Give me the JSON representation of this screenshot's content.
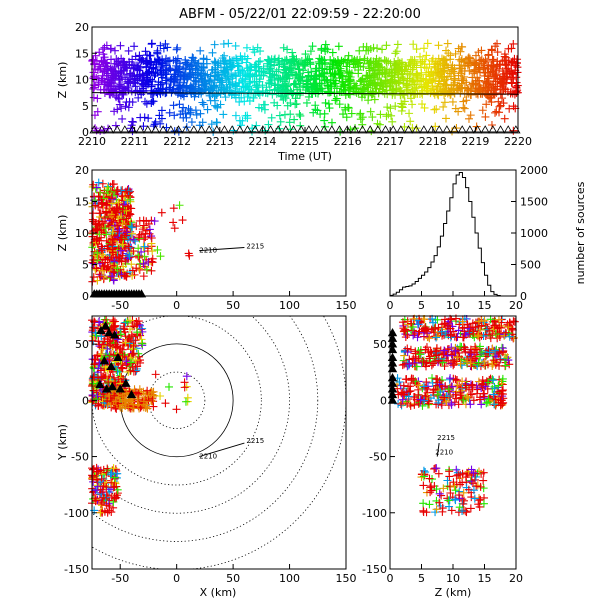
{
  "title": "ABFM - 05/22/01 22:09:59 - 22:20:00",
  "chart_data": [
    {
      "id": "time_height",
      "type": "scatter",
      "xlabel": "Time (UT)",
      "ylabel": "Z (km)",
      "xlim": [
        2210,
        2220
      ],
      "ylim": [
        0,
        20
      ],
      "x_ticks": [
        "2210",
        "2211",
        "2212",
        "2213",
        "2214",
        "2215",
        "2216",
        "2217",
        "2218",
        "2219",
        "2220"
      ],
      "y_ticks": [
        "0",
        "5",
        "10",
        "15",
        "20"
      ],
      "reference_line_y": 7.5,
      "color_encoding": "time (violet to red)",
      "clusters": [
        {
          "x_range": [
            2210,
            2220
          ],
          "y_range": [
            7,
            14
          ],
          "count": 1400
        },
        {
          "x_range": [
            2210,
            2220
          ],
          "y_range": [
            3,
            17
          ],
          "count": 520
        },
        {
          "x_range": [
            2210,
            2220
          ],
          "y_range": [
            0,
            3
          ],
          "count": 80
        }
      ],
      "ground_stations": "triangles along z=0"
    },
    {
      "id": "x_z",
      "type": "scatter",
      "xlabel": "",
      "ylabel": "Z (km)",
      "xlim": [
        -75,
        150
      ],
      "ylim": [
        0,
        20
      ],
      "x_ticks": [
        "-50",
        "0",
        "50",
        "100",
        "150"
      ],
      "y_ticks": [
        "0",
        "5",
        "10",
        "15",
        "20"
      ],
      "clusters": [
        {
          "x_range": [
            -75,
            -55
          ],
          "y_range": [
            2,
            18
          ],
          "count": 220
        },
        {
          "x_range": [
            -58,
            -40
          ],
          "y_range": [
            3,
            17
          ],
          "count": 240
        },
        {
          "x_range": [
            -40,
            -22
          ],
          "y_range": [
            3,
            12
          ],
          "count": 60
        },
        {
          "x_range": [
            -22,
            12
          ],
          "y_range": [
            4,
            15
          ],
          "count": 14
        }
      ],
      "track": {
        "x": [
          20,
          60
        ],
        "z": [
          7.2,
          7.7
        ],
        "labels": [
          "2210",
          "2215"
        ]
      }
    },
    {
      "id": "histogram",
      "type": "bar",
      "xlabel": "",
      "ylabel": "number of sources",
      "xlim": [
        0,
        20
      ],
      "ylim": [
        0,
        2000
      ],
      "x_ticks": [
        "0",
        "5",
        "10",
        "15",
        "20"
      ],
      "y_ticks": [
        "0",
        "500",
        "1000",
        "1500",
        "2000"
      ],
      "bin_width": 0.5,
      "bin_starts": [
        0,
        0.5,
        1,
        1.5,
        2,
        2.5,
        3,
        3.5,
        4,
        4.5,
        5,
        5.5,
        6,
        6.5,
        7,
        7.5,
        8,
        8.5,
        9,
        9.5,
        10,
        10.5,
        11,
        11.5,
        12,
        12.5,
        13,
        13.5,
        14,
        14.5,
        15,
        15.5,
        16,
        16.5,
        17,
        17.5,
        18,
        18.5,
        19,
        19.5
      ],
      "values": [
        10,
        30,
        60,
        100,
        140,
        150,
        160,
        190,
        230,
        280,
        330,
        380,
        450,
        540,
        640,
        780,
        950,
        1150,
        1350,
        1560,
        1780,
        1920,
        1960,
        1880,
        1720,
        1500,
        1250,
        1000,
        760,
        530,
        330,
        170,
        70,
        25,
        8,
        0,
        0,
        0,
        0,
        0
      ]
    },
    {
      "id": "x_y",
      "type": "scatter",
      "xlabel": "X (km)",
      "ylabel": "Y (km)",
      "xlim": [
        -75,
        150
      ],
      "ylim": [
        -150,
        75
      ],
      "x_ticks": [
        "-50",
        "0",
        "50",
        "100",
        "150"
      ],
      "y_ticks": [
        "-150",
        "-100",
        "-50",
        "0",
        "50"
      ],
      "range_rings_km": [
        25,
        50,
        75,
        100,
        125,
        150
      ],
      "clusters": [
        {
          "x_range": [
            -75,
            -30
          ],
          "y_range": [
            45,
            72
          ],
          "count": 150
        },
        {
          "x_range": [
            -75,
            -32
          ],
          "y_range": [
            25,
            42
          ],
          "count": 120
        },
        {
          "x_range": [
            -75,
            -45
          ],
          "y_range": [
            -5,
            22
          ],
          "count": 200
        },
        {
          "x_range": [
            -62,
            -20
          ],
          "y_range": [
            -8,
            10
          ],
          "count": 140
        },
        {
          "x_range": [
            -75,
            -52
          ],
          "y_range": [
            -100,
            -60
          ],
          "count": 120
        },
        {
          "x_range": [
            -20,
            15
          ],
          "y_range": [
            -10,
            25
          ],
          "count": 12
        }
      ],
      "track": {
        "x": [
          20,
          60
        ],
        "y": [
          -50,
          -38
        ],
        "labels": [
          "2210",
          "2215"
        ]
      }
    },
    {
      "id": "z_y",
      "type": "scatter",
      "xlabel": "Z (km)",
      "ylabel": "",
      "xlim": [
        0,
        20
      ],
      "ylim": [
        -150,
        75
      ],
      "x_ticks": [
        "0",
        "5",
        "10",
        "15",
        "20"
      ],
      "y_ticks": [
        "-150",
        "-100",
        "-50",
        "0",
        "50"
      ],
      "clusters": [
        {
          "x_range": [
            2,
            20
          ],
          "y_range": [
            55,
            73
          ],
          "count": 220
        },
        {
          "x_range": [
            2,
            19
          ],
          "y_range": [
            30,
            48
          ],
          "count": 220
        },
        {
          "x_range": [
            1,
            18
          ],
          "y_range": [
            -5,
            20
          ],
          "count": 260
        },
        {
          "x_range": [
            5,
            15
          ],
          "y_range": [
            -100,
            -60
          ],
          "count": 120
        }
      ],
      "track": {
        "z": [
          7.5,
          7.8
        ],
        "y": [
          -50,
          -38
        ],
        "labels": [
          "2210",
          "2215"
        ]
      }
    }
  ]
}
